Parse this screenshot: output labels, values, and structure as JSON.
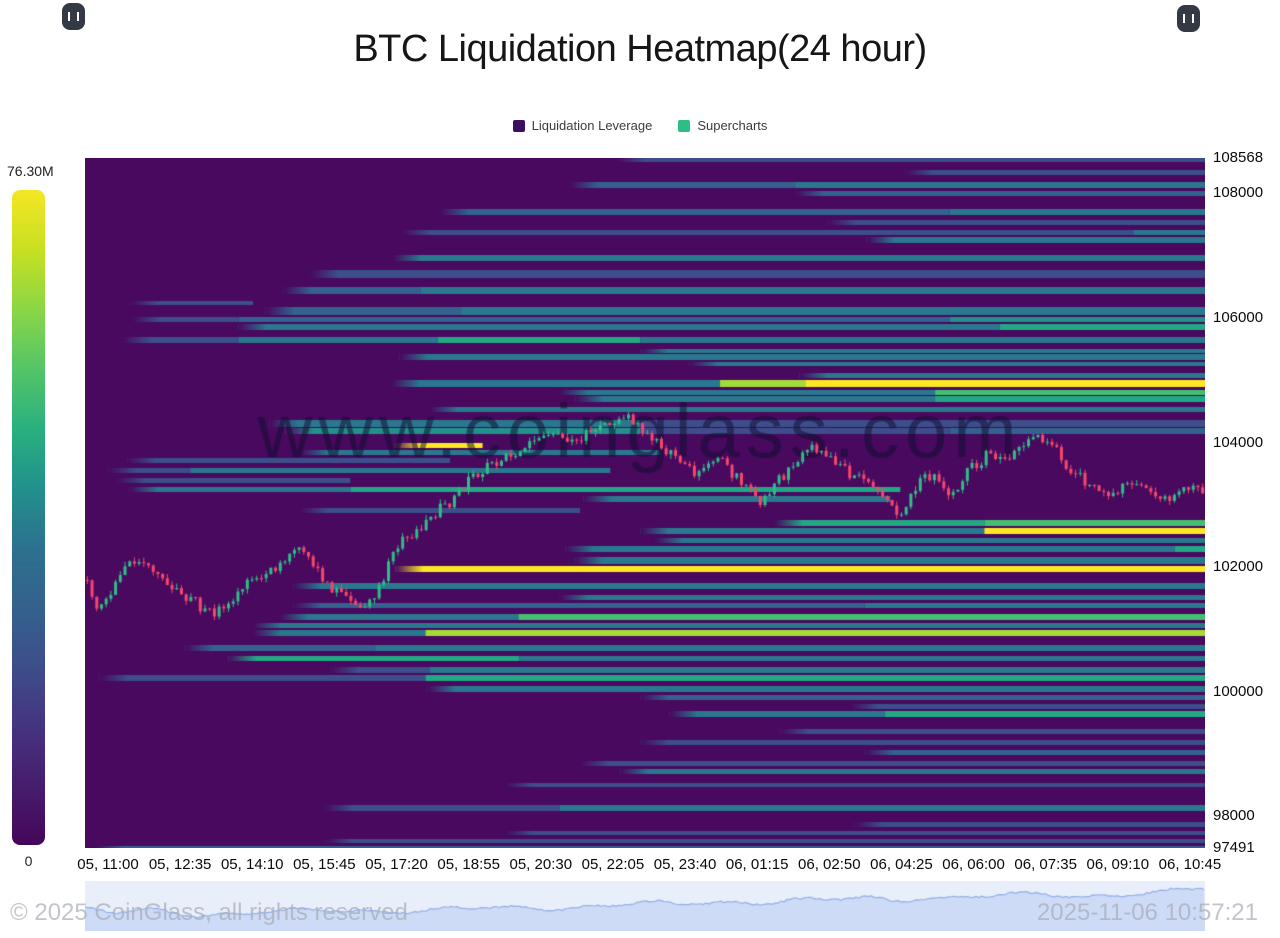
{
  "title": "BTC Liquidation Heatmap(24 hour)",
  "legend": [
    {
      "label": "Liquidation Leverage",
      "color": "#3b0d63"
    },
    {
      "label": "Supercharts",
      "color": "#2ebd85"
    }
  ],
  "colorbar": {
    "max_label": "76.30M",
    "min_label": "0",
    "gradient": [
      "#f5e626",
      "#c8e020",
      "#8bd646",
      "#54c568",
      "#2ab07f",
      "#21918c",
      "#2c718e",
      "#34618d",
      "#3d4e8a",
      "#453480",
      "#461d6d",
      "#45065a"
    ]
  },
  "footer": {
    "copyright": "© 2025 CoinGlass, all rights reserved",
    "timestamp": "2025-11-06 10:57:21"
  },
  "chart_data": {
    "type": "heatmap",
    "watermark": "www.coinglass.com",
    "background": "#48095f",
    "candle_up": "#2fbd86",
    "candle_down": "#f5476b",
    "price_axis": {
      "min": 97491,
      "max": 108568,
      "ticks": [
        108568,
        108000,
        106000,
        104000,
        102000,
        100000,
        98000,
        97491
      ]
    },
    "time_ticks": [
      "05, 11:00",
      "05, 12:35",
      "05, 14:10",
      "05, 15:45",
      "05, 17:20",
      "05, 18:55",
      "05, 20:30",
      "05, 22:05",
      "05, 23:40",
      "06, 01:15",
      "06, 02:50",
      "06, 04:25",
      "06, 06:00",
      "06, 07:35",
      "06, 09:10",
      "06, 10:45"
    ],
    "palette": {
      "db": "#3d4e8a",
      "st": "#34618d",
      "tl": "#2a788e",
      "bt": "#21918c",
      "gr": "#22a884",
      "lg": "#44bf70",
      "lm": "#a5db36",
      "yl": "#fde725"
    },
    "bands": [
      {
        "p": 108536,
        "h": 5,
        "s": [
          [
            0.475,
            "db"
          ]
        ]
      },
      {
        "p": 108343,
        "h": 5,
        "s": [
          [
            0.732,
            "db"
          ]
        ]
      },
      {
        "p": 108134,
        "h": 6,
        "s": [
          [
            0.433,
            "st"
          ],
          [
            0.634,
            "tl"
          ]
        ]
      },
      {
        "p": 108006,
        "h": 5,
        "s": [
          [
            0.634,
            "st"
          ]
        ]
      },
      {
        "p": 107701,
        "h": 6,
        "s": [
          [
            0.317,
            "st"
          ],
          [
            0.772,
            "tl"
          ]
        ]
      },
      {
        "p": 107540,
        "h": 5,
        "s": [
          [
            0.663,
            "db"
          ]
        ]
      },
      {
        "p": 107380,
        "h": 5,
        "s": [
          [
            0.283,
            "db"
          ],
          [
            0.936,
            "tl"
          ]
        ]
      },
      {
        "p": 107251,
        "h": 6,
        "s": [
          [
            0.698,
            "tl"
          ]
        ]
      },
      {
        "p": 106962,
        "h": 6,
        "s": [
          [
            0.275,
            "tl"
          ]
        ]
      },
      {
        "p": 106705,
        "h": 8,
        "s": [
          [
            0.201,
            "db"
          ]
        ]
      },
      {
        "p": 106433,
        "h": 7,
        "s": [
          [
            0.177,
            "st"
          ],
          [
            0.3,
            "tl"
          ]
        ]
      },
      {
        "p": 106240,
        "h": 4,
        "s": [
          [
            0.04,
            "db"
          ]
        ],
        "e": 0.15
      },
      {
        "p": 106112,
        "h": 8,
        "s": [
          [
            0.161,
            "st"
          ],
          [
            0.335,
            "tl"
          ]
        ]
      },
      {
        "p": 105983,
        "h": 5,
        "s": [
          [
            0.042,
            "db"
          ],
          [
            0.137,
            "st"
          ],
          [
            0.772,
            "bt"
          ]
        ]
      },
      {
        "p": 105855,
        "h": 6,
        "s": [
          [
            0.137,
            "tl"
          ],
          [
            0.817,
            "gr"
          ]
        ]
      },
      {
        "p": 105646,
        "h": 6,
        "s": [
          [
            0.033,
            "db"
          ],
          [
            0.137,
            "tl"
          ],
          [
            0.315,
            "gr"
          ],
          [
            0.496,
            "tl"
          ]
        ]
      },
      {
        "p": 105469,
        "h": 4,
        "s": [
          [
            0.496,
            "tl"
          ]
        ]
      },
      {
        "p": 105373,
        "h": 6,
        "s": [
          [
            0.281,
            "tl"
          ]
        ]
      },
      {
        "p": 105261,
        "h": 4,
        "s": [
          [
            0.54,
            "tl"
          ]
        ]
      },
      {
        "p": 105084,
        "h": 5,
        "s": [
          [
            0.638,
            "tl"
          ]
        ]
      },
      {
        "p": 104940,
        "h": 7,
        "s": [
          [
            0.274,
            "tl"
          ],
          [
            0.567,
            "lm"
          ],
          [
            0.643,
            "yl"
          ]
        ]
      },
      {
        "p": 104811,
        "h": 5,
        "s": [
          [
            0.424,
            "tl"
          ],
          [
            0.759,
            "lg"
          ]
        ]
      },
      {
        "p": 104699,
        "h": 6,
        "s": [
          [
            0.438,
            "tl"
          ],
          [
            0.759,
            "gr"
          ]
        ]
      },
      {
        "p": 104538,
        "h": 5,
        "s": [
          [
            0.308,
            "tl"
          ]
        ]
      },
      {
        "p": 104313,
        "h": 7,
        "s": [
          [
            0.165,
            "tl"
          ],
          [
            0.496,
            "db"
          ]
        ]
      },
      {
        "p": 104185,
        "h": 6,
        "s": [
          [
            0.179,
            "bt"
          ],
          [
            0.496,
            "db"
          ],
          [
            0.772,
            "st"
          ]
        ]
      },
      {
        "p": 103960,
        "h": 5,
        "s": [
          [
            0.275,
            "yl"
          ]
        ],
        "e": 0.355
      },
      {
        "p": 103848,
        "h": 5,
        "s": [
          [
            0.192,
            "tl"
          ]
        ],
        "e": 0.513
      },
      {
        "p": 103719,
        "h": 5,
        "s": [
          [
            0.038,
            "db"
          ]
        ],
        "e": 0.326
      },
      {
        "p": 103559,
        "h": 5,
        "s": [
          [
            0.021,
            "db"
          ],
          [
            0.094,
            "tl"
          ]
        ],
        "e": 0.469
      },
      {
        "p": 103398,
        "h": 5,
        "s": [
          [
            0.029,
            "db"
          ]
        ],
        "e": 0.237
      },
      {
        "p": 103254,
        "h": 5,
        "s": [
          [
            0.04,
            "tl"
          ],
          [
            0.237,
            "gr"
          ]
        ],
        "e": 0.728
      },
      {
        "p": 103093,
        "h": 6,
        "s": [
          [
            0.445,
            "tl"
          ]
        ],
        "e": 0.719
      },
      {
        "p": 102916,
        "h": 5,
        "s": [
          [
            0.192,
            "db"
          ]
        ],
        "e": 0.442
      },
      {
        "p": 102708,
        "h": 6,
        "s": [
          [
            0.616,
            "gr"
          ],
          [
            0.803,
            "lg"
          ]
        ]
      },
      {
        "p": 102579,
        "h": 6,
        "s": [
          [
            0.496,
            "tl"
          ],
          [
            0.803,
            "yl"
          ]
        ]
      },
      {
        "p": 102435,
        "h": 5,
        "s": [
          [
            0.509,
            "tl"
          ]
        ]
      },
      {
        "p": 102290,
        "h": 6,
        "s": [
          [
            0.429,
            "tl"
          ],
          [
            0.973,
            "gr"
          ]
        ]
      },
      {
        "p": 102114,
        "h": 7,
        "s": [
          [
            0.437,
            "tl"
          ]
        ]
      },
      {
        "p": 101969,
        "h": 6,
        "s": [
          [
            0.277,
            "yl"
          ]
        ]
      },
      {
        "p": 101696,
        "h": 6,
        "s": [
          [
            0.186,
            "tl"
          ]
        ]
      },
      {
        "p": 101520,
        "h": 5,
        "s": [
          [
            0.424,
            "tl"
          ]
        ]
      },
      {
        "p": 101391,
        "h": 5,
        "s": [
          [
            0.186,
            "st"
          ],
          [
            0.696,
            "tl"
          ]
        ]
      },
      {
        "p": 101199,
        "h": 6,
        "s": [
          [
            0.174,
            "tl"
          ],
          [
            0.387,
            "lg"
          ]
        ]
      },
      {
        "p": 101070,
        "h": 5,
        "s": [
          [
            0.15,
            "tl"
          ]
        ]
      },
      {
        "p": 100942,
        "h": 6,
        "s": [
          [
            0.15,
            "tl"
          ],
          [
            0.304,
            "lm"
          ]
        ]
      },
      {
        "p": 100701,
        "h": 6,
        "s": [
          [
            0.089,
            "st"
          ],
          [
            0.259,
            "tl"
          ]
        ]
      },
      {
        "p": 100541,
        "h": 5,
        "s": [
          [
            0.128,
            "gr"
          ],
          [
            0.388,
            "tl"
          ]
        ]
      },
      {
        "p": 100348,
        "h": 6,
        "s": [
          [
            0.219,
            "db"
          ],
          [
            0.308,
            "tl"
          ]
        ]
      },
      {
        "p": 100220,
        "h": 6,
        "s": [
          [
            0.013,
            "db"
          ],
          [
            0.304,
            "gr"
          ]
        ]
      },
      {
        "p": 100043,
        "h": 6,
        "s": [
          [
            0.306,
            "tl"
          ]
        ]
      },
      {
        "p": 99915,
        "h": 5,
        "s": [
          [
            0.496,
            "st"
          ]
        ]
      },
      {
        "p": 99770,
        "h": 5,
        "s": [
          [
            0.683,
            "db"
          ]
        ]
      },
      {
        "p": 99642,
        "h": 6,
        "s": [
          [
            0.522,
            "tl"
          ],
          [
            0.714,
            "gr"
          ]
        ]
      },
      {
        "p": 99369,
        "h": 5,
        "s": [
          [
            0.62,
            "db"
          ]
        ]
      },
      {
        "p": 99192,
        "h": 5,
        "s": [
          [
            0.496,
            "db"
          ]
        ]
      },
      {
        "p": 99032,
        "h": 5,
        "s": [
          [
            0.696,
            "st"
          ]
        ]
      },
      {
        "p": 98855,
        "h": 5,
        "s": [
          [
            0.442,
            "db"
          ]
        ]
      },
      {
        "p": 98727,
        "h": 5,
        "s": [
          [
            0.478,
            "tl"
          ]
        ]
      },
      {
        "p": 98502,
        "h": 4,
        "s": [
          [
            0.375,
            "db"
          ]
        ]
      },
      {
        "p": 98133,
        "h": 6,
        "s": [
          [
            0.214,
            "db"
          ],
          [
            0.424,
            "tl"
          ]
        ]
      },
      {
        "p": 97876,
        "h": 5,
        "s": [
          [
            0.687,
            "db"
          ]
        ]
      },
      {
        "p": 97732,
        "h": 4,
        "s": [
          [
            0.375,
            "db"
          ]
        ]
      },
      {
        "p": 97603,
        "h": 4,
        "s": [
          [
            0.214,
            "db"
          ]
        ]
      },
      {
        "p": 97491,
        "h": 4,
        "s": [
          [
            0.009,
            "st"
          ]
        ]
      }
    ],
    "price_path": [
      [
        0.0,
        101793
      ],
      [
        0.013,
        101311
      ],
      [
        0.04,
        102114
      ],
      [
        0.067,
        101873
      ],
      [
        0.083,
        101600
      ],
      [
        0.116,
        101231
      ],
      [
        0.138,
        101632
      ],
      [
        0.165,
        101953
      ],
      [
        0.192,
        102355
      ],
      [
        0.219,
        101713
      ],
      [
        0.246,
        101311
      ],
      [
        0.263,
        101632
      ],
      [
        0.281,
        102435
      ],
      [
        0.308,
        102756
      ],
      [
        0.326,
        103077
      ],
      [
        0.344,
        103398
      ],
      [
        0.362,
        103639
      ],
      [
        0.388,
        103880
      ],
      [
        0.411,
        104201
      ],
      [
        0.433,
        103960
      ],
      [
        0.46,
        104281
      ],
      [
        0.482,
        104442
      ],
      [
        0.504,
        104040
      ],
      [
        0.531,
        103719
      ],
      [
        0.549,
        103479
      ],
      [
        0.567,
        103719
      ],
      [
        0.585,
        103398
      ],
      [
        0.603,
        103077
      ],
      [
        0.629,
        103559
      ],
      [
        0.647,
        103960
      ],
      [
        0.665,
        103800
      ],
      [
        0.683,
        103479
      ],
      [
        0.7,
        103398
      ],
      [
        0.719,
        102997
      ],
      [
        0.728,
        102756
      ],
      [
        0.746,
        103398
      ],
      [
        0.759,
        103559
      ],
      [
        0.772,
        103077
      ],
      [
        0.79,
        103639
      ],
      [
        0.808,
        103800
      ],
      [
        0.826,
        103719
      ],
      [
        0.844,
        104120
      ],
      [
        0.862,
        104040
      ],
      [
        0.879,
        103559
      ],
      [
        0.897,
        103318
      ],
      [
        0.915,
        103157
      ],
      [
        0.933,
        103398
      ],
      [
        0.951,
        103238
      ],
      [
        0.969,
        103077
      ],
      [
        0.982,
        103318
      ],
      [
        1.0,
        103157
      ]
    ],
    "navigator": {
      "bg": "#e9eefb",
      "line": "#8aa9e6",
      "fill": "rgba(170,195,240,0.45)",
      "points": [
        [
          0,
          0.42
        ],
        [
          0.03,
          0.3
        ],
        [
          0.06,
          0.36
        ],
        [
          0.1,
          0.28
        ],
        [
          0.15,
          0.34
        ],
        [
          0.2,
          0.35
        ],
        [
          0.25,
          0.38
        ],
        [
          0.3,
          0.4
        ],
        [
          0.35,
          0.42
        ],
        [
          0.4,
          0.44
        ],
        [
          0.45,
          0.5
        ],
        [
          0.5,
          0.56
        ],
        [
          0.53,
          0.52
        ],
        [
          0.56,
          0.62
        ],
        [
          0.6,
          0.6
        ],
        [
          0.63,
          0.66
        ],
        [
          0.66,
          0.62
        ],
        [
          0.7,
          0.72
        ],
        [
          0.72,
          0.64
        ],
        [
          0.75,
          0.76
        ],
        [
          0.78,
          0.72
        ],
        [
          0.82,
          0.76
        ],
        [
          0.86,
          0.8
        ],
        [
          0.9,
          0.78
        ],
        [
          0.93,
          0.82
        ],
        [
          0.96,
          0.84
        ],
        [
          1.0,
          0.95
        ]
      ]
    }
  }
}
